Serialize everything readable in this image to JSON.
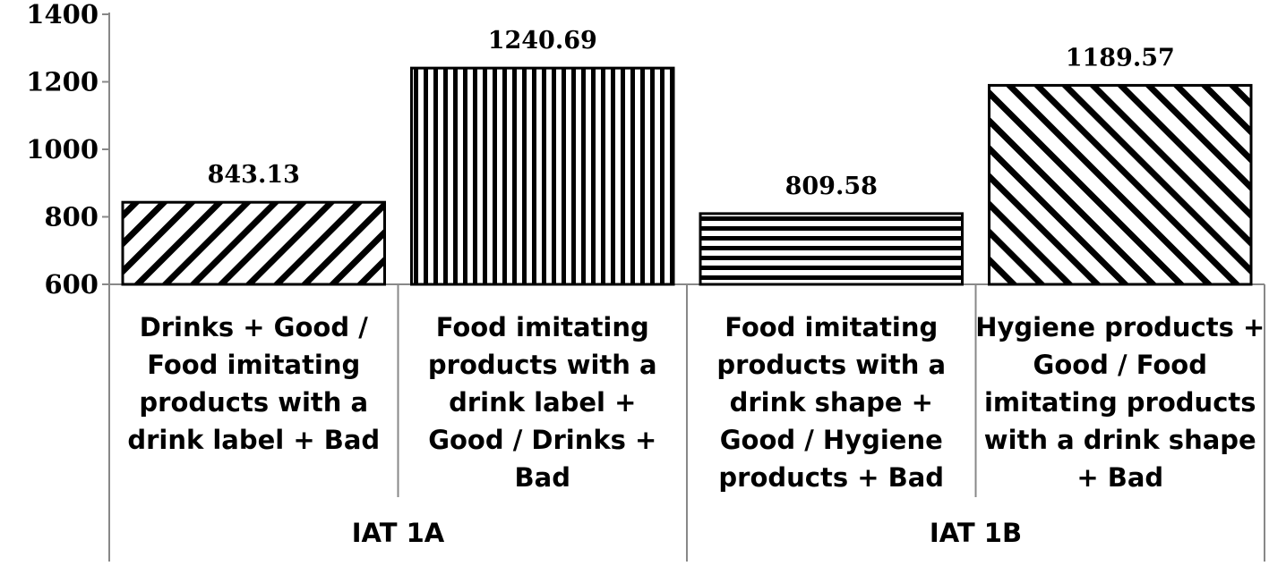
{
  "chart_data": {
    "type": "bar",
    "title": "",
    "xlabel": "",
    "ylabel": "",
    "ylim": [
      600,
      1400
    ],
    "yticks": [
      600,
      800,
      1000,
      1200,
      1400
    ],
    "categories": [
      "Drinks + Good / Food imitating products with a drink label + Bad",
      "Food imitating products with a drink label + Good / Drinks + Bad",
      "Food imitating products with a drink shape + Good / Hygiene products + Bad",
      "Hygiene products + Good / Food imitating products with a drink shape + Bad"
    ],
    "category_lines": [
      [
        "Drinks + Good /",
        "Food imitating",
        "products with a",
        "drink label + Bad"
      ],
      [
        "Food imitating",
        "products with a",
        "drink label +",
        "Good / Drinks +",
        "Bad"
      ],
      [
        "Food imitating",
        "products with a",
        "drink shape +",
        "Good / Hygiene",
        "products + Bad"
      ],
      [
        "Hygiene products +",
        "Good / Food",
        "imitating products",
        "with a drink shape",
        "+ Bad"
      ]
    ],
    "values": [
      843.13,
      1240.69,
      809.58,
      1189.57
    ],
    "value_labels": [
      "843.13",
      "1240.69",
      "809.58",
      "1189.57"
    ],
    "patterns": [
      "diagonal-down",
      "vertical",
      "horizontal",
      "diagonal-up"
    ],
    "groups": [
      {
        "label": "IAT 1A",
        "categories": [
          0,
          1
        ]
      },
      {
        "label": "IAT 1B",
        "categories": [
          2,
          3
        ]
      }
    ],
    "grid": false,
    "legend": "none"
  }
}
